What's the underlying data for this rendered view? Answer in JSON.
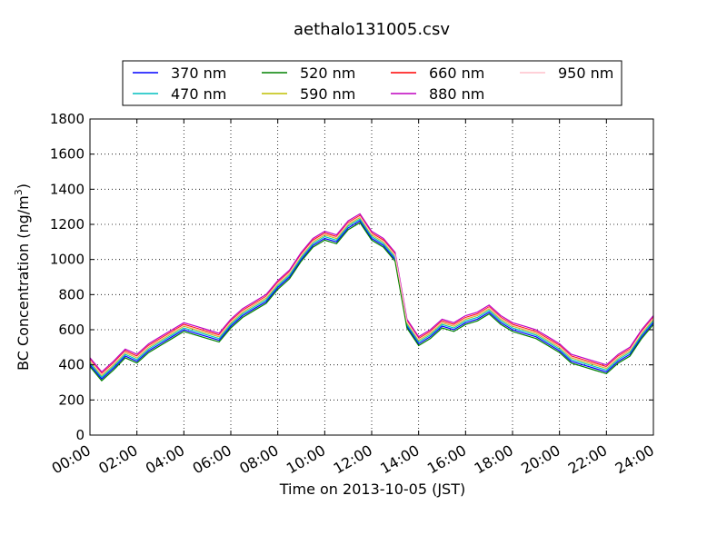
{
  "chart_data": {
    "type": "line",
    "title": "aethalo131005.csv",
    "xlabel": "Time on 2013-10-05 (JST)",
    "ylabel": "BC Concentration (ng/m³)",
    "ylabel_parts": {
      "prefix": "BC Concentration (ng/m",
      "superscript": "3",
      "suffix": ")"
    },
    "x_unit": "hours",
    "xlim": [
      0,
      24
    ],
    "ylim": [
      0,
      1800
    ],
    "x_ticks": [
      0,
      2,
      4,
      6,
      8,
      10,
      12,
      14,
      16,
      18,
      20,
      22,
      24
    ],
    "x_tick_labels": [
      "00:00",
      "02:00",
      "04:00",
      "06:00",
      "08:00",
      "10:00",
      "12:00",
      "14:00",
      "16:00",
      "18:00",
      "20:00",
      "22:00",
      "24:00"
    ],
    "y_ticks": [
      0,
      200,
      400,
      600,
      800,
      1000,
      1200,
      1400,
      1600,
      1800
    ],
    "y_tick_labels": [
      "0",
      "200",
      "400",
      "600",
      "800",
      "1000",
      "1200",
      "1400",
      "1600",
      "1800"
    ],
    "grid": true,
    "grid_style": "dotted",
    "legend_position": "top",
    "x_hours": [
      0.0,
      0.5,
      1.0,
      1.5,
      2.0,
      2.5,
      3.0,
      3.5,
      4.0,
      4.5,
      5.0,
      5.5,
      6.0,
      6.5,
      7.0,
      7.5,
      8.0,
      8.5,
      9.0,
      9.5,
      10.0,
      10.5,
      11.0,
      11.5,
      12.0,
      12.5,
      13.0,
      13.5,
      14.0,
      14.5,
      15.0,
      15.5,
      16.0,
      16.5,
      17.0,
      17.5,
      18.0,
      18.5,
      19.0,
      19.5,
      20.0,
      20.5,
      21.0,
      21.5,
      22.0,
      22.5,
      23.0,
      23.5,
      24.0
    ],
    "series": [
      {
        "name": "370 nm",
        "color": "#0000ff",
        "values": [
          400,
          320,
          380,
          450,
          420,
          480,
          520,
          560,
          600,
          580,
          560,
          540,
          620,
          680,
          720,
          760,
          840,
          900,
          1000,
          1080,
          1120,
          1100,
          1180,
          1220,
          1120,
          1080,
          1000,
          620,
          520,
          560,
          620,
          600,
          640,
          660,
          700,
          640,
          600,
          580,
          560,
          520,
          480,
          420,
          400,
          380,
          360,
          420,
          460,
          560,
          640
        ]
      },
      {
        "name": "470 nm",
        "color": "#00bfbf",
        "values": [
          410,
          330,
          390,
          460,
          430,
          490,
          530,
          570,
          610,
          590,
          570,
          550,
          630,
          690,
          730,
          770,
          850,
          910,
          1010,
          1090,
          1130,
          1110,
          1190,
          1230,
          1130,
          1090,
          1010,
          630,
          530,
          570,
          630,
          610,
          650,
          670,
          710,
          650,
          610,
          590,
          570,
          530,
          490,
          430,
          410,
          390,
          370,
          430,
          470,
          570,
          650
        ]
      },
      {
        "name": "520 nm",
        "color": "#008000",
        "values": [
          390,
          310,
          370,
          440,
          410,
          470,
          510,
          550,
          590,
          570,
          550,
          530,
          610,
          670,
          710,
          750,
          830,
          890,
          990,
          1070,
          1110,
          1090,
          1170,
          1210,
          1110,
          1070,
          990,
          610,
          510,
          550,
          610,
          590,
          630,
          650,
          690,
          630,
          590,
          570,
          550,
          510,
          470,
          410,
          390,
          370,
          350,
          410,
          450,
          550,
          630
        ]
      },
      {
        "name": "590 nm",
        "color": "#bfbf00",
        "values": [
          420,
          340,
          400,
          470,
          440,
          500,
          540,
          580,
          620,
          600,
          580,
          560,
          640,
          700,
          740,
          780,
          860,
          920,
          1020,
          1100,
          1140,
          1120,
          1200,
          1240,
          1140,
          1100,
          1020,
          640,
          540,
          580,
          640,
          620,
          660,
          680,
          720,
          660,
          620,
          600,
          580,
          540,
          500,
          440,
          420,
          400,
          380,
          440,
          480,
          580,
          660
        ]
      },
      {
        "name": "660 nm",
        "color": "#ff0000",
        "values": [
          430,
          350,
          410,
          480,
          450,
          510,
          550,
          590,
          630,
          610,
          590,
          570,
          650,
          710,
          750,
          790,
          870,
          930,
          1030,
          1110,
          1150,
          1130,
          1210,
          1250,
          1150,
          1110,
          1030,
          650,
          550,
          590,
          650,
          630,
          670,
          690,
          730,
          670,
          630,
          610,
          590,
          550,
          510,
          450,
          430,
          410,
          390,
          450,
          490,
          590,
          670
        ]
      },
      {
        "name": "880 nm",
        "color": "#bf00bf",
        "values": [
          440,
          360,
          420,
          490,
          460,
          520,
          560,
          600,
          640,
          620,
          600,
          580,
          660,
          720,
          760,
          800,
          880,
          940,
          1040,
          1120,
          1160,
          1140,
          1220,
          1260,
          1160,
          1120,
          1040,
          660,
          560,
          600,
          660,
          640,
          680,
          700,
          740,
          680,
          640,
          620,
          600,
          560,
          520,
          460,
          440,
          420,
          400,
          460,
          500,
          600,
          680
        ]
      },
      {
        "name": "950 nm",
        "color": "#ffc0cb",
        "values": [
          425,
          345,
          405,
          475,
          445,
          505,
          545,
          585,
          625,
          605,
          585,
          565,
          645,
          705,
          745,
          785,
          865,
          925,
          1025,
          1105,
          1145,
          1125,
          1205,
          1245,
          1145,
          1105,
          1025,
          645,
          545,
          585,
          645,
          625,
          665,
          685,
          725,
          665,
          625,
          605,
          585,
          545,
          505,
          445,
          425,
          405,
          385,
          445,
          485,
          585,
          665
        ]
      }
    ]
  }
}
